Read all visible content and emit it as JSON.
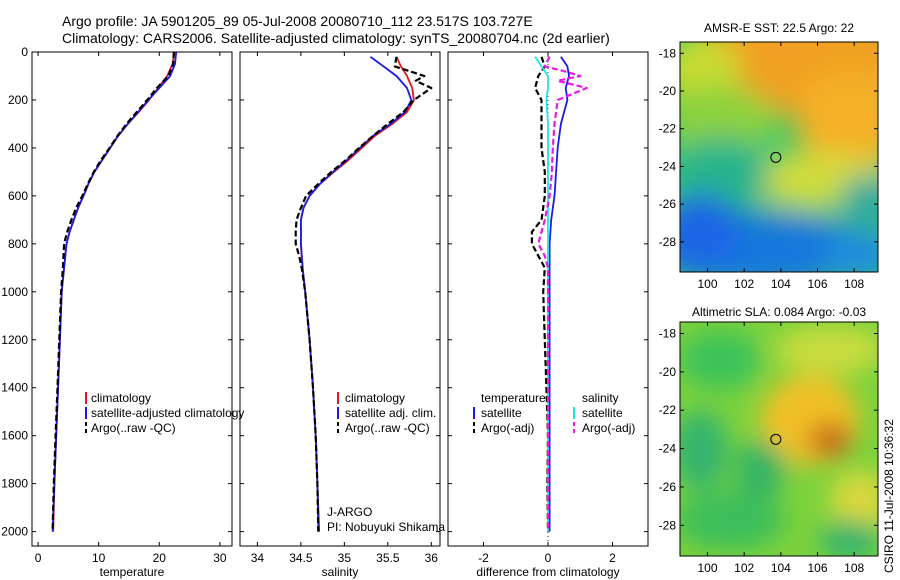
{
  "titles": {
    "line1": "Argo profile: JA 5901205_89 05-Jul-2008 20080710_112 23.517S 103.727E",
    "line2": "Climatology: CARS2006. Satellite-adjusted climatology: synTS_20080704.nc (2d earlier)"
  },
  "side_label": "CSIRO 11-Jul-2008 10:36:32",
  "colors": {
    "climatology": "#e8141c",
    "satellite": "#1a1ae6",
    "argo": "#000000",
    "cyan": "#1ee6e6",
    "magenta": "#e619e6"
  },
  "chart_data": [
    {
      "type": "line",
      "id": "temperature",
      "xlabel": "temperature",
      "ylabel": "",
      "xlim": [
        -1,
        32
      ],
      "ylim": [
        2060,
        0
      ],
      "xticks": [
        0,
        10,
        20,
        30
      ],
      "yticks": [
        0,
        200,
        400,
        600,
        800,
        1000,
        1200,
        1400,
        1600,
        1800,
        2000
      ],
      "legend": [
        "climatology",
        "satellite-adjusted climatology",
        "Argo(..raw -QC)"
      ],
      "series": [
        {
          "name": "climatology",
          "color": "climatology",
          "dash": false,
          "points": [
            [
              22.5,
              0
            ],
            [
              22.2,
              50
            ],
            [
              21.3,
              100
            ],
            [
              19.8,
              150
            ],
            [
              18.3,
              200
            ],
            [
              16.6,
              250
            ],
            [
              14.8,
              300
            ],
            [
              13.2,
              350
            ],
            [
              11.9,
              400
            ],
            [
              10.6,
              450
            ],
            [
              9.3,
              500
            ],
            [
              8.3,
              550
            ],
            [
              7.5,
              600
            ],
            [
              6.6,
              650
            ],
            [
              5.9,
              700
            ],
            [
              5.2,
              750
            ],
            [
              4.7,
              800
            ],
            [
              4.3,
              900
            ],
            [
              3.9,
              1000
            ],
            [
              3.6,
              1200
            ],
            [
              3.3,
              1400
            ],
            [
              3.0,
              1600
            ],
            [
              2.7,
              1800
            ],
            [
              2.5,
              2000
            ]
          ]
        },
        {
          "name": "satellite",
          "color": "satellite",
          "dash": false,
          "points": [
            [
              22.8,
              0
            ],
            [
              22.6,
              50
            ],
            [
              21.8,
              100
            ],
            [
              20.0,
              150
            ],
            [
              18.2,
              200
            ],
            [
              16.5,
              250
            ],
            [
              14.8,
              300
            ],
            [
              13.2,
              350
            ],
            [
              11.9,
              400
            ],
            [
              10.6,
              450
            ],
            [
              9.3,
              500
            ],
            [
              8.3,
              550
            ],
            [
              7.5,
              600
            ],
            [
              6.6,
              650
            ],
            [
              5.9,
              700
            ],
            [
              5.2,
              750
            ],
            [
              4.7,
              800
            ],
            [
              4.3,
              900
            ],
            [
              3.9,
              1000
            ],
            [
              3.6,
              1200
            ],
            [
              3.3,
              1400
            ],
            [
              3.0,
              1600
            ],
            [
              2.7,
              1800
            ],
            [
              2.4,
              2000
            ]
          ]
        },
        {
          "name": "Argo",
          "color": "argo",
          "dash": true,
          "points": [
            [
              22.4,
              0
            ],
            [
              22.3,
              50
            ],
            [
              21.5,
              100
            ],
            [
              19.6,
              150
            ],
            [
              18.0,
              200
            ],
            [
              16.3,
              250
            ],
            [
              14.6,
              300
            ],
            [
              13.1,
              350
            ],
            [
              11.8,
              400
            ],
            [
              10.4,
              450
            ],
            [
              9.2,
              500
            ],
            [
              8.2,
              550
            ],
            [
              7.3,
              600
            ],
            [
              6.3,
              650
            ],
            [
              5.5,
              700
            ],
            [
              4.8,
              750
            ],
            [
              4.3,
              800
            ],
            [
              4.1,
              900
            ],
            [
              3.8,
              1000
            ],
            [
              3.5,
              1200
            ],
            [
              3.2,
              1400
            ],
            [
              2.9,
              1600
            ],
            [
              2.6,
              1800
            ],
            [
              2.4,
              2000
            ]
          ]
        }
      ]
    },
    {
      "type": "line",
      "id": "salinity",
      "xlabel": "salinity",
      "ylabel": "",
      "xlim": [
        33.8,
        36.1
      ],
      "ylim": [
        2060,
        0
      ],
      "xticks": [
        34,
        34.5,
        35,
        35.5,
        36
      ],
      "yticks": [
        0,
        200,
        400,
        600,
        800,
        1000,
        1200,
        1400,
        1600,
        1800,
        2000
      ],
      "legend": [
        "climatology",
        "satellite adj. clim.",
        "Argo(..raw -QC)"
      ],
      "annotation": [
        "J-ARGO",
        "PI: Nobuyuki Shikama"
      ],
      "series": [
        {
          "name": "climatology",
          "color": "climatology",
          "dash": false,
          "points": [
            [
              35.6,
              20
            ],
            [
              35.65,
              60
            ],
            [
              35.72,
              100
            ],
            [
              35.78,
              150
            ],
            [
              35.8,
              200
            ],
            [
              35.72,
              250
            ],
            [
              35.55,
              300
            ],
            [
              35.35,
              350
            ],
            [
              35.2,
              400
            ],
            [
              35.05,
              450
            ],
            [
              34.88,
              500
            ],
            [
              34.72,
              550
            ],
            [
              34.6,
              600
            ],
            [
              34.53,
              650
            ],
            [
              34.5,
              700
            ],
            [
              34.5,
              750
            ],
            [
              34.5,
              800
            ],
            [
              34.52,
              900
            ],
            [
              34.55,
              1000
            ],
            [
              34.6,
              1200
            ],
            [
              34.64,
              1400
            ],
            [
              34.67,
              1600
            ],
            [
              34.69,
              1800
            ],
            [
              34.7,
              2000
            ]
          ]
        },
        {
          "name": "satellite",
          "color": "satellite",
          "dash": false,
          "points": [
            [
              35.3,
              20
            ],
            [
              35.45,
              60
            ],
            [
              35.6,
              100
            ],
            [
              35.72,
              150
            ],
            [
              35.77,
              200
            ],
            [
              35.7,
              250
            ],
            [
              35.53,
              300
            ],
            [
              35.33,
              350
            ],
            [
              35.18,
              400
            ],
            [
              35.03,
              450
            ],
            [
              34.87,
              500
            ],
            [
              34.72,
              550
            ],
            [
              34.6,
              600
            ],
            [
              34.53,
              650
            ],
            [
              34.5,
              700
            ],
            [
              34.5,
              750
            ],
            [
              34.5,
              800
            ],
            [
              34.52,
              900
            ],
            [
              34.55,
              1000
            ],
            [
              34.6,
              1200
            ],
            [
              34.64,
              1400
            ],
            [
              34.67,
              1600
            ],
            [
              34.69,
              1800
            ],
            [
              34.71,
              2000
            ]
          ]
        },
        {
          "name": "Argo",
          "color": "argo",
          "dash": true,
          "points": [
            [
              35.6,
              20
            ],
            [
              35.58,
              60
            ],
            [
              35.75,
              80
            ],
            [
              35.92,
              100
            ],
            [
              35.82,
              120
            ],
            [
              36.0,
              150
            ],
            [
              35.8,
              200
            ],
            [
              35.68,
              250
            ],
            [
              35.5,
              300
            ],
            [
              35.33,
              350
            ],
            [
              35.17,
              400
            ],
            [
              35.02,
              450
            ],
            [
              34.85,
              500
            ],
            [
              34.7,
              550
            ],
            [
              34.56,
              600
            ],
            [
              34.5,
              650
            ],
            [
              34.45,
              700
            ],
            [
              34.44,
              750
            ],
            [
              34.44,
              800
            ],
            [
              34.48,
              850
            ],
            [
              34.51,
              900
            ],
            [
              34.55,
              1000
            ],
            [
              34.6,
              1200
            ],
            [
              34.64,
              1400
            ],
            [
              34.67,
              1600
            ],
            [
              34.69,
              1800
            ],
            [
              34.7,
              2000
            ]
          ]
        }
      ]
    },
    {
      "type": "line",
      "id": "difference",
      "xlabel": "difference from climatology",
      "ylabel": "",
      "xlim": [
        -3.1,
        3.1
      ],
      "ylim": [
        2060,
        0
      ],
      "xticks": [
        -2,
        0,
        2
      ],
      "yticks": [
        0,
        200,
        400,
        600,
        800,
        1000,
        1200,
        1400,
        1600,
        1800,
        2000
      ],
      "legend_temperature": {
        "title": "temperature",
        "items": [
          "satellite",
          "Argo(-adj)"
        ]
      },
      "legend_salinity": {
        "title": "salinity",
        "items": [
          "satellite",
          "Argo(-adj)"
        ]
      },
      "series": [
        {
          "name": "temperature satellite",
          "color": "satellite",
          "dash": false,
          "points": [
            [
              0.4,
              20
            ],
            [
              0.6,
              60
            ],
            [
              0.65,
              100
            ],
            [
              0.55,
              150
            ],
            [
              0.6,
              200
            ],
            [
              0.5,
              250
            ],
            [
              0.4,
              300
            ],
            [
              0.3,
              400
            ],
            [
              0.25,
              500
            ],
            [
              0.2,
              600
            ],
            [
              0.1,
              700
            ],
            [
              0.05,
              800
            ],
            [
              0.05,
              1000
            ],
            [
              0.05,
              1500
            ],
            [
              0.05,
              2000
            ]
          ]
        },
        {
          "name": "temperature Argo(-adj)",
          "color": "argo",
          "dash": true,
          "points": [
            [
              -0.2,
              20
            ],
            [
              -0.1,
              60
            ],
            [
              -0.3,
              100
            ],
            [
              -0.4,
              150
            ],
            [
              -0.2,
              200
            ],
            [
              -0.2,
              300
            ],
            [
              -0.2,
              400
            ],
            [
              -0.1,
              500
            ],
            [
              -0.1,
              600
            ],
            [
              -0.2,
              700
            ],
            [
              -0.5,
              750
            ],
            [
              -0.5,
              800
            ],
            [
              -0.3,
              850
            ],
            [
              -0.1,
              900
            ],
            [
              -0.15,
              1000
            ],
            [
              -0.1,
              1200
            ],
            [
              -0.05,
              1400
            ],
            [
              0.0,
              1600
            ],
            [
              -0.02,
              1800
            ],
            [
              0.0,
              2000
            ]
          ]
        },
        {
          "name": "salinity satellite",
          "color": "cyan",
          "dash": false,
          "points": [
            [
              -0.4,
              20
            ],
            [
              -0.2,
              60
            ],
            [
              0.0,
              100
            ],
            [
              0.0,
              150
            ],
            [
              -0.05,
              200
            ],
            [
              0.0,
              300
            ],
            [
              0.0,
              400
            ],
            [
              0.0,
              600
            ],
            [
              0.0,
              800
            ],
            [
              0.0,
              1000
            ],
            [
              0.0,
              1500
            ],
            [
              0.0,
              2000
            ]
          ]
        },
        {
          "name": "salinity Argo(-adj)",
          "color": "magenta",
          "dash": true,
          "points": [
            [
              0.05,
              20
            ],
            [
              -0.1,
              60
            ],
            [
              0.5,
              80
            ],
            [
              1.0,
              100
            ],
            [
              0.3,
              120
            ],
            [
              1.2,
              150
            ],
            [
              0.3,
              200
            ],
            [
              0.2,
              300
            ],
            [
              0.15,
              400
            ],
            [
              0.12,
              500
            ],
            [
              0.05,
              600
            ],
            [
              -0.1,
              700
            ],
            [
              -0.2,
              750
            ],
            [
              -0.3,
              800
            ],
            [
              -0.1,
              850
            ],
            [
              0.0,
              900
            ],
            [
              0.0,
              1000
            ],
            [
              0.0,
              1500
            ],
            [
              0.0,
              2000
            ]
          ]
        }
      ]
    },
    {
      "type": "heatmap",
      "id": "sst",
      "title": "AMSR-E SST: 22.5 Argo: 22",
      "xlim": [
        98.5,
        109.3
      ],
      "ylim": [
        -29.6,
        -17.4
      ],
      "xticks": [
        100,
        102,
        104,
        106,
        108
      ],
      "yticks": [
        -18,
        -20,
        -22,
        -24,
        -26,
        -28
      ],
      "marker": [
        103.727,
        -23.517
      ]
    },
    {
      "type": "heatmap",
      "id": "sla",
      "title": "Altimetric SLA: 0.084 Argo: -0.03",
      "xlim": [
        98.5,
        109.3
      ],
      "ylim": [
        -29.6,
        -17.4
      ],
      "xticks": [
        100,
        102,
        104,
        106,
        108
      ],
      "yticks": [
        -18,
        -20,
        -22,
        -24,
        -26,
        -28
      ],
      "marker": [
        103.727,
        -23.517
      ]
    }
  ]
}
